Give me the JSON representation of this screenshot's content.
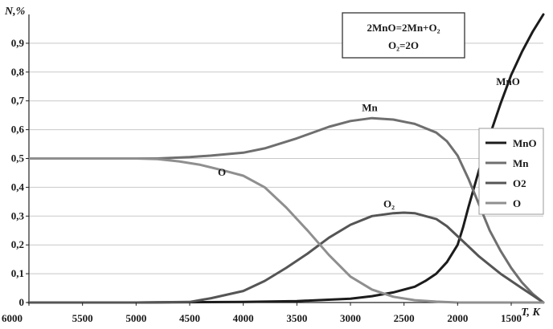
{
  "chart_data": {
    "type": "line",
    "xlabel": "T, K",
    "ylabel": "N,%",
    "xlim": [
      6000,
      1200
    ],
    "ylim": [
      0,
      1.0
    ],
    "x_ticks": [
      6000,
      5500,
      5000,
      4500,
      4000,
      3500,
      3000,
      2500,
      2000,
      1500
    ],
    "y_ticks": [
      0,
      0.1,
      0.2,
      0.3,
      0.4,
      0.5,
      0.6,
      0.7,
      0.8,
      0.9
    ],
    "x_tick_labels": [
      "6000",
      "5500",
      "5000",
      "4500",
      "4000",
      "3500",
      "3000",
      "2500",
      "2000",
      "1500"
    ],
    "y_tick_labels": [
      "0",
      "0,1",
      "0,2",
      "0,3",
      "0,4",
      "0,5",
      "0,6",
      "0,7",
      "0,8",
      "0,9"
    ],
    "grid": "horizontal",
    "legend_position": "right",
    "equations": [
      "2MnO=2Mn+O₂",
      "O₂=2O"
    ],
    "series": [
      {
        "name": "MnO",
        "color": "#1c1c1c",
        "x": [
          6000,
          5000,
          4000,
          3500,
          3000,
          2800,
          2600,
          2400,
          2300,
          2200,
          2100,
          2000,
          1950,
          1900,
          1800,
          1700,
          1600,
          1500,
          1400,
          1300,
          1200
        ],
        "y": [
          0,
          0,
          0.002,
          0.005,
          0.013,
          0.022,
          0.035,
          0.055,
          0.075,
          0.1,
          0.14,
          0.2,
          0.26,
          0.33,
          0.46,
          0.58,
          0.69,
          0.79,
          0.87,
          0.94,
          1.0
        ]
      },
      {
        "name": "Mn",
        "color": "#6f6f6f",
        "x": [
          6000,
          5000,
          4800,
          4500,
          4300,
          4000,
          3800,
          3500,
          3200,
          3000,
          2800,
          2600,
          2400,
          2200,
          2100,
          2000,
          1900,
          1800,
          1700,
          1600,
          1500,
          1400,
          1300,
          1200
        ],
        "y": [
          0.5,
          0.5,
          0.5,
          0.505,
          0.51,
          0.52,
          0.535,
          0.57,
          0.61,
          0.63,
          0.64,
          0.635,
          0.62,
          0.59,
          0.56,
          0.51,
          0.43,
          0.34,
          0.25,
          0.18,
          0.12,
          0.07,
          0.03,
          0
        ]
      },
      {
        "name": "O2",
        "color": "#555555",
        "x": [
          6000,
          5000,
          4500,
          4300,
          4000,
          3800,
          3600,
          3400,
          3200,
          3000,
          2800,
          2600,
          2500,
          2400,
          2200,
          2100,
          2000,
          1900,
          1800,
          1700,
          1600,
          1500,
          1400,
          1300,
          1200
        ],
        "y": [
          0,
          0,
          0.002,
          0.015,
          0.04,
          0.075,
          0.12,
          0.17,
          0.225,
          0.27,
          0.3,
          0.31,
          0.312,
          0.31,
          0.29,
          0.265,
          0.23,
          0.195,
          0.16,
          0.13,
          0.1,
          0.075,
          0.05,
          0.025,
          0
        ]
      },
      {
        "name": "O",
        "color": "#8f8f8f",
        "x": [
          6000,
          5000,
          4800,
          4600,
          4400,
          4200,
          4000,
          3800,
          3600,
          3400,
          3200,
          3000,
          2800,
          2600,
          2400,
          2200,
          2000,
          1800,
          1200
        ],
        "y": [
          0.5,
          0.5,
          0.498,
          0.49,
          0.478,
          0.46,
          0.44,
          0.4,
          0.33,
          0.25,
          0.165,
          0.09,
          0.045,
          0.02,
          0.008,
          0.003,
          0,
          0,
          0
        ]
      }
    ],
    "annotations": [
      {
        "text": "MnO",
        "x": 1530,
        "y": 0.755
      },
      {
        "text": "Mn",
        "x": 2820,
        "y": 0.665
      },
      {
        "text": "O",
        "x": 4200,
        "y": 0.44
      },
      {
        "text": "O₂",
        "x": 2640,
        "y": 0.33
      }
    ]
  }
}
